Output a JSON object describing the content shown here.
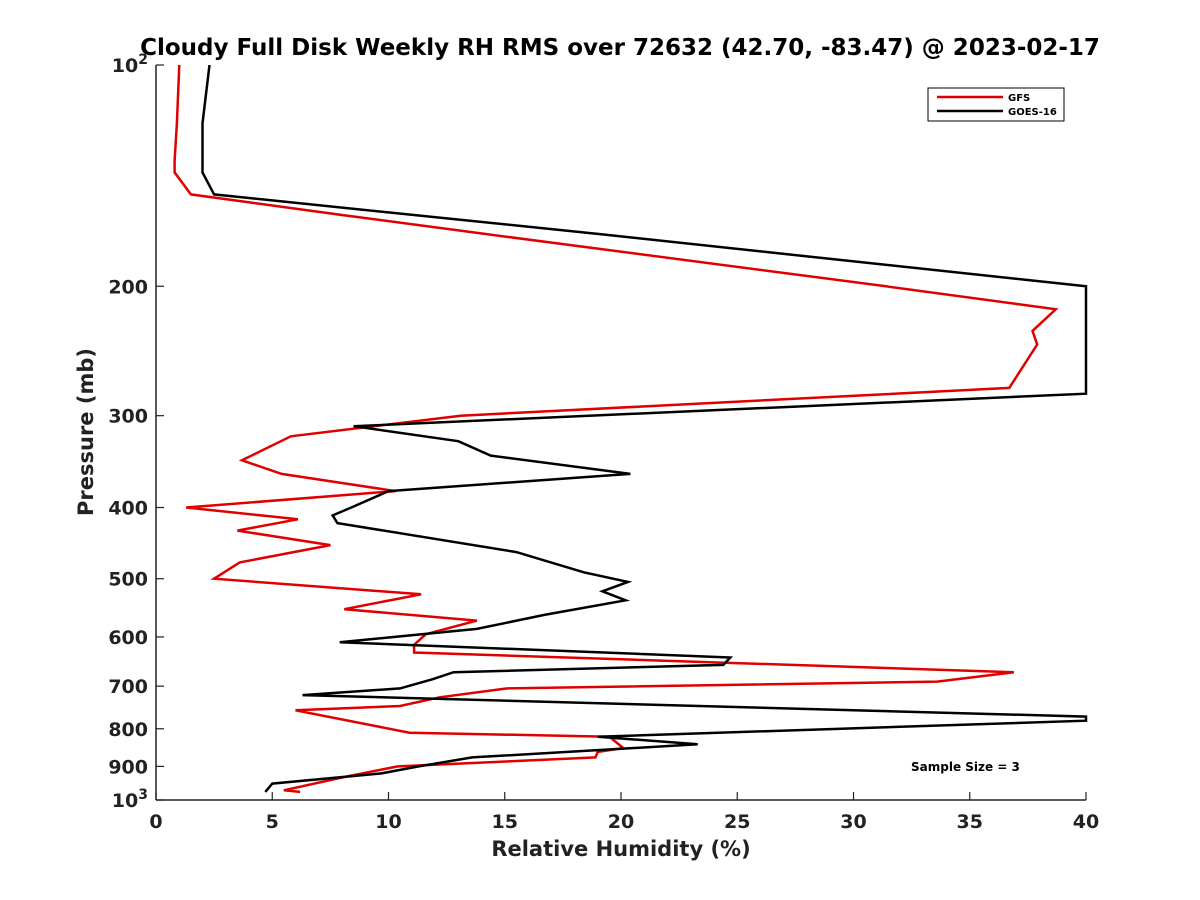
{
  "chart_data": {
    "type": "line",
    "title": "Cloudy Full Disk Weekly RH RMS over 72632 (42.70, -83.47) @ 2023-02-17",
    "xlabel": "Relative Humidity (%)",
    "ylabel": "Pressure (mb)",
    "xlim": [
      0,
      40
    ],
    "ylim": [
      1000,
      100
    ],
    "yscale": "log",
    "y_reversed": true,
    "xticks": [
      0,
      5,
      10,
      15,
      20,
      25,
      30,
      35,
      40
    ],
    "xtick_labels": [
      "0",
      "5",
      "10",
      "15",
      "20",
      "25",
      "30",
      "35",
      "40"
    ],
    "yticks": [
      100,
      200,
      300,
      400,
      500,
      600,
      700,
      800,
      900,
      1000
    ],
    "ytick_labels": [
      {
        "base": "10",
        "exp": "2"
      },
      {
        "base": "200",
        "exp": ""
      },
      {
        "base": "300",
        "exp": ""
      },
      {
        "base": "400",
        "exp": ""
      },
      {
        "base": "500",
        "exp": ""
      },
      {
        "base": "600",
        "exp": ""
      },
      {
        "base": "700",
        "exp": ""
      },
      {
        "base": "800",
        "exp": ""
      },
      {
        "base": "900",
        "exp": ""
      },
      {
        "base": "10",
        "exp": "3"
      }
    ],
    "grid": false,
    "legend_position": "top-right",
    "annotation": "Sample Size = 3",
    "series": [
      {
        "name": "GFS",
        "color": "#e00000",
        "x": [
          1.0,
          0.9,
          0.8,
          0.8,
          1.5,
          8.0,
          14.3,
          31.4,
          38.7,
          37.7,
          37.9,
          36.7,
          13.1,
          5.8,
          3.7,
          5.4,
          10.3,
          1.3,
          6.1,
          3.5,
          7.5,
          3.6,
          2.5,
          11.4,
          8.1,
          13.8,
          11.6,
          11.1,
          11.1,
          36.9,
          33.6,
          15.1,
          12.2,
          10.5,
          6.0,
          10.9,
          19.5,
          20.1,
          19.0,
          18.9,
          10.4,
          8.5,
          7.8,
          5.5,
          6.2
        ],
        "y": [
          100,
          120,
          135,
          140,
          150,
          160,
          170,
          200,
          215,
          230,
          240,
          275,
          300,
          320,
          345,
          360,
          380,
          400,
          415,
          430,
          450,
          475,
          500,
          525,
          550,
          570,
          595,
          615,
          630,
          670,
          690,
          705,
          725,
          745,
          755,
          810,
          820,
          850,
          860,
          875,
          900,
          925,
          935,
          970,
          975
        ]
      },
      {
        "name": "GOES-16",
        "color": "#000000",
        "x": [
          2.3,
          2.0,
          2.0,
          2.5,
          19.2,
          40.0,
          40.0,
          40.0,
          8.5,
          13.0,
          14.4,
          20.4,
          10.0,
          8.4,
          7.6,
          7.8,
          15.5,
          18.4,
          20.3,
          19.2,
          20.2,
          16.7,
          13.8,
          7.9,
          24.7,
          24.4,
          12.8,
          11.9,
          10.5,
          6.3,
          40.0,
          40.0,
          19.0,
          23.3,
          13.6,
          11.3,
          9.7,
          5.0,
          4.7
        ],
        "y": [
          100,
          120,
          140,
          150,
          170,
          200,
          235,
          280,
          310,
          325,
          340,
          360,
          380,
          400,
          410,
          420,
          460,
          490,
          505,
          520,
          535,
          560,
          585,
          610,
          640,
          655,
          670,
          685,
          705,
          720,
          770,
          780,
          820,
          840,
          875,
          900,
          920,
          950,
          975
        ]
      }
    ]
  }
}
